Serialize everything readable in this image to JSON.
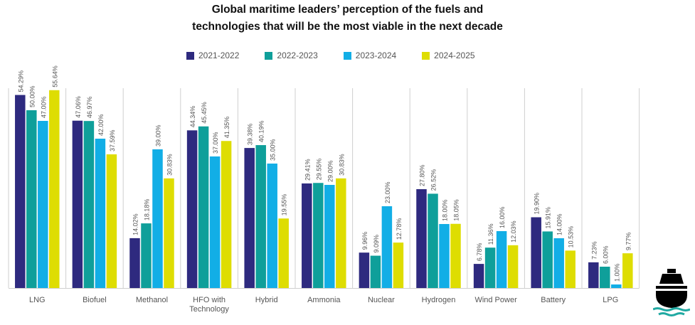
{
  "chart_data": {
    "type": "bar",
    "title": "Global maritime leaders' perception of the fuels and technologies that will be the most viable in the next decade",
    "title_lines": [
      "Global maritime leaders’ perception of the fuels and",
      "technologies that will be the most viable in the next decade"
    ],
    "xlabel": "",
    "ylabel": "",
    "ylim": [
      0,
      60
    ],
    "grid": false,
    "legend_position": "top-center",
    "categories": [
      "LNG",
      "Biofuel",
      "Methanol",
      "HFO with Technology",
      "Hybrid",
      "Ammonia",
      "Nuclear",
      "Hydrogen",
      "Wind Power",
      "Battery",
      "LPG"
    ],
    "category_lines": [
      [
        "LNG"
      ],
      [
        "Biofuel"
      ],
      [
        "Methanol"
      ],
      [
        "HFO with",
        "Technology"
      ],
      [
        "Hybrid"
      ],
      [
        "Ammonia"
      ],
      [
        "Nuclear"
      ],
      [
        "Hydrogen"
      ],
      [
        "Wind Power"
      ],
      [
        "Battery"
      ],
      [
        "LPG"
      ]
    ],
    "series": [
      {
        "name": "2021-2022",
        "color": "#2e2a7f",
        "values": [
          54.29,
          47.06,
          14.02,
          44.34,
          39.38,
          29.41,
          9.96,
          27.8,
          6.78,
          19.9,
          7.23
        ],
        "labels": [
          "54.29%",
          "47.06%",
          "14.02%",
          "44.34%",
          "39.38%",
          "29.41%",
          "9.96%",
          "27.80%",
          "6.78%",
          "19.90%",
          "7.23%"
        ]
      },
      {
        "name": "2022-2023",
        "color": "#0f9f9a",
        "values": [
          50.0,
          46.97,
          18.18,
          45.45,
          40.19,
          29.55,
          9.09,
          26.52,
          11.36,
          15.91,
          6.0
        ],
        "labels": [
          "50.00%",
          "46.97%",
          "18.18%",
          "45.45%",
          "40.19%",
          "29.55%",
          "9.09%",
          "26.52%",
          "11.36%",
          "15.91%",
          "6.00%"
        ]
      },
      {
        "name": "2023-2024",
        "color": "#12aee6",
        "values": [
          47.0,
          42.0,
          39.0,
          37.0,
          35.0,
          29.0,
          23.0,
          18.0,
          16.0,
          14.0,
          1.0
        ],
        "labels": [
          "47.00%",
          "42.00%",
          "39.00%",
          "37.00%",
          "35.00%",
          "29.00%",
          "23.00%",
          "18.00%",
          "16.00%",
          "14.00%",
          "1.00%"
        ]
      },
      {
        "name": "2024-2025",
        "color": "#dedd02",
        "values": [
          55.64,
          37.59,
          30.83,
          41.35,
          19.55,
          30.83,
          12.78,
          18.05,
          12.03,
          10.53,
          9.77
        ],
        "labels": [
          "55.64%",
          "37.59%",
          "30.83%",
          "41.35%",
          "19.55%",
          "30.83%",
          "12.78%",
          "18.05%",
          "12.03%",
          "10.53%",
          "9.77%"
        ]
      }
    ]
  },
  "logo": {
    "icon": "ship-icon",
    "colors": {
      "hull": "#000000",
      "waves": "#21a9a2"
    }
  }
}
